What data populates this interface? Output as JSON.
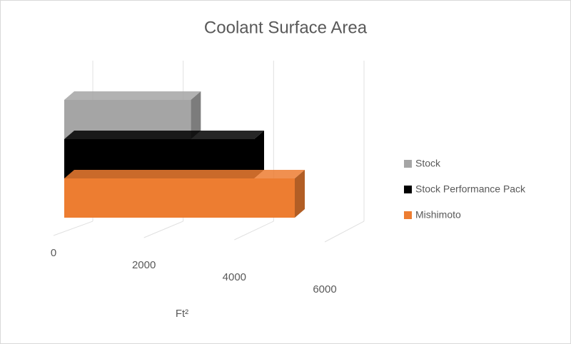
{
  "chart_data": {
    "type": "bar3d",
    "title": "Coolant Surface Area",
    "x_label": "Ft²",
    "categories": [
      "Stock",
      "Stock Performance Pack",
      "Mishimoto"
    ],
    "series": [
      {
        "name": "Stock",
        "color": "#a5a5a5",
        "values": [
          2800,
          null,
          null
        ]
      },
      {
        "name": "Stock Performance Pack",
        "color": "#000000",
        "values": [
          null,
          4200,
          null
        ]
      },
      {
        "name": "Mishimoto",
        "color": "#ed7d31",
        "values": [
          null,
          null,
          5100
        ]
      }
    ],
    "xlim": [
      0,
      6000
    ],
    "xticks": [
      0,
      2000,
      4000,
      6000
    ],
    "grid": true,
    "legend": "right"
  }
}
